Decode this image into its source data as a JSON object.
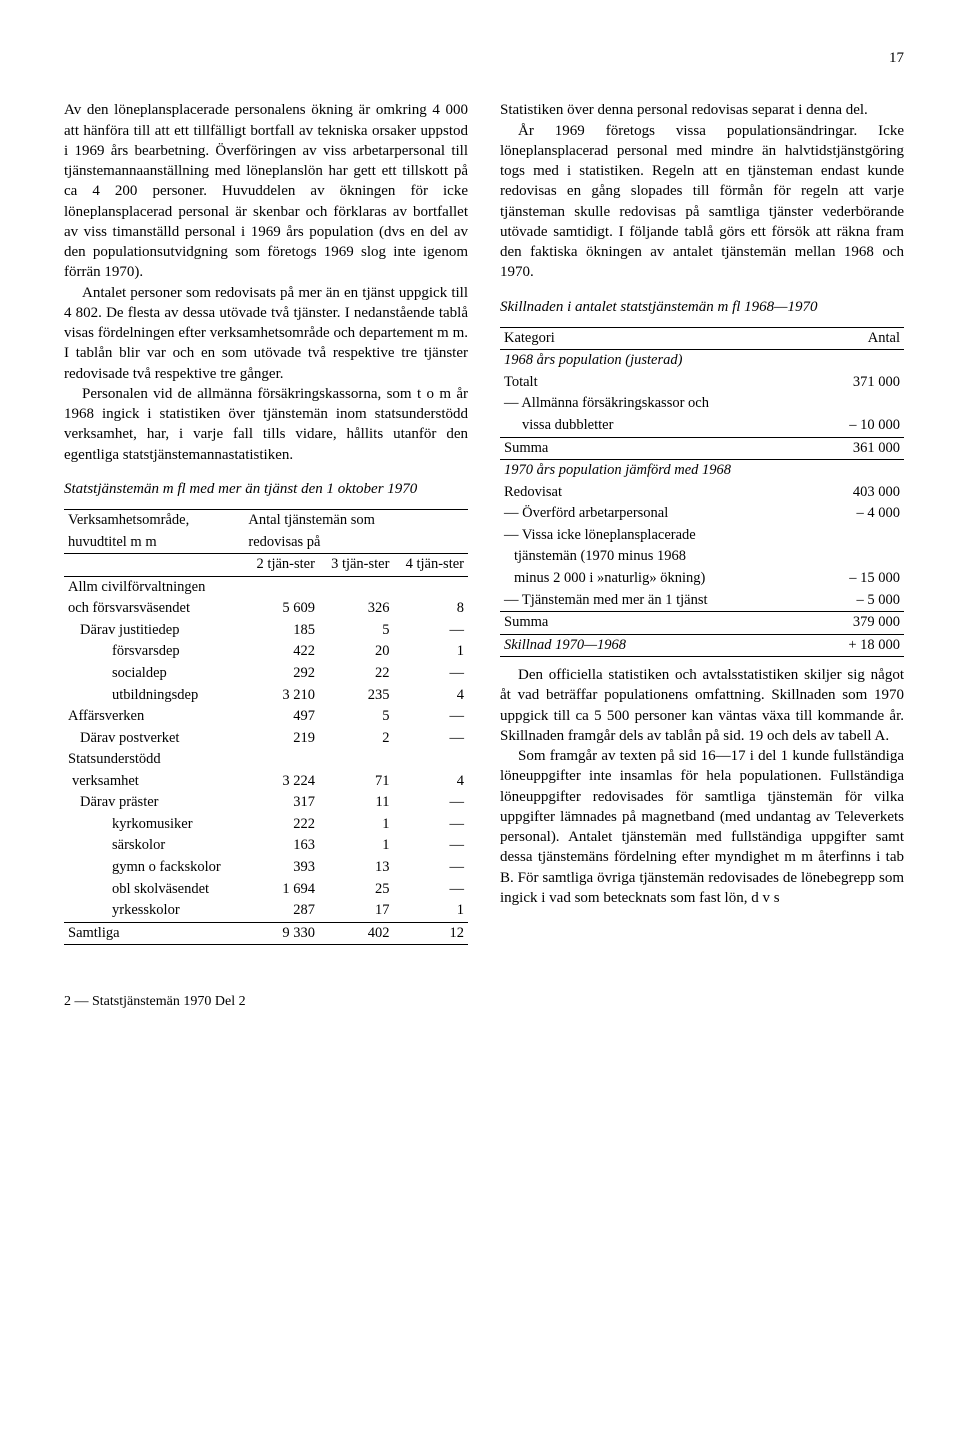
{
  "page_number": "17",
  "left": {
    "paragraphs": [
      "Av den löneplansplacerade personalens ökning är omkring 4 000 att hänföra till att ett tillfälligt bortfall av tekniska orsaker uppstod i 1969 års bearbetning. Överföringen av viss arbetarpersonal till tjänstemannaanställning med löneplanslön har gett ett tillskott på ca 4 200 personer. Huvuddelen av ökningen för icke löneplansplacerad personal är skenbar och förklaras av bortfallet av viss timanställd personal i 1969 års population (dvs en del av den populationsutvidgning som företogs 1969 slog inte igenom förrän 1970).",
      "Antalet personer som redovisats på mer än en tjänst uppgick till 4 802. De flesta av dessa utövade två tjänster. I nedanstående tablå visas fördelningen efter verksamhetsområde och departement m m. I tablån blir var och en som utövade två respektive tre tjänster redovisade två respektive tre gånger.",
      "Personalen vid de allmänna försäkringskassorna, som t o m år 1968 ingick i statistiken över tjänstemän inom statsunderstödd verksamhet, har, i varje fall tills vidare, hållits utanför den egentliga statstjänstemannastatistiken."
    ],
    "table1": {
      "title": "Statstjänstemän m fl med mer än tjänst den 1 oktober 1970",
      "header_left1": "Verksamhetsområde,",
      "header_left2": "huvudtitel m m",
      "header_right1": "Antal tjänstemän som",
      "header_right2": "redovisas på",
      "col_labels": [
        "2 tjän-ster",
        "3 tjän-ster",
        "4 tjän-ster"
      ],
      "rows": [
        {
          "label": "Allm civilförvaltningen",
          "indent": 0,
          "vals": [
            "",
            "",
            ""
          ]
        },
        {
          "label": "och försvarsväsendet",
          "indent": 0,
          "vals": [
            "5 609",
            "326",
            "8"
          ]
        },
        {
          "label": "Därav justitiedep",
          "indent": 1,
          "vals": [
            "185",
            "5",
            "—"
          ]
        },
        {
          "label": "försvarsdep",
          "indent": 2,
          "vals": [
            "422",
            "20",
            "1"
          ]
        },
        {
          "label": "socialdep",
          "indent": 2,
          "vals": [
            "292",
            "22",
            "—"
          ]
        },
        {
          "label": "utbildningsdep",
          "indent": 2,
          "vals": [
            "3 210",
            "235",
            "4"
          ]
        },
        {
          "label": "Affärsverken",
          "indent": 0,
          "vals": [
            "497",
            "5",
            "—"
          ]
        },
        {
          "label": "Därav postverket",
          "indent": 1,
          "vals": [
            "219",
            "2",
            "—"
          ]
        },
        {
          "label": "Statsunderstödd",
          "indent": 0,
          "vals": [
            "",
            "",
            ""
          ]
        },
        {
          "label": "verksamhet",
          "indent": 0,
          "vals": [
            "3 224",
            "71",
            "4"
          ],
          "continuation": true
        },
        {
          "label": "Därav präster",
          "indent": 1,
          "vals": [
            "317",
            "11",
            "—"
          ]
        },
        {
          "label": "kyrkomusiker",
          "indent": 2,
          "vals": [
            "222",
            "1",
            "—"
          ]
        },
        {
          "label": "särskolor",
          "indent": 2,
          "vals": [
            "163",
            "1",
            "—"
          ]
        },
        {
          "label": "gymn o fackskolor",
          "indent": 2,
          "vals": [
            "393",
            "13",
            "—"
          ]
        },
        {
          "label": "obl skolväsendet",
          "indent": 2,
          "vals": [
            "1 694",
            "25",
            "—"
          ]
        },
        {
          "label": "yrkesskolor",
          "indent": 2,
          "vals": [
            "287",
            "17",
            "1"
          ]
        }
      ],
      "total": {
        "label": "Samtliga",
        "vals": [
          "9 330",
          "402",
          "12"
        ]
      }
    }
  },
  "right": {
    "paragraphs_top": [
      "Statistiken över denna personal redovisas separat i denna del.",
      "År 1969 företogs vissa populationsändringar. Icke löneplansplacerad personal med mindre än halvtidstjänstgöring togs med i statistiken. Regeln att en tjänsteman endast kunde redovisas en gång slopades till förmån för regeln att varje tjänsteman skulle redovisas på samtliga tjänster vederbörande utövade samtidigt. I följande tablå görs ett försök att räkna fram den faktiska ökningen av antalet tjänstemän mellan 1968 och 1970."
    ],
    "table2": {
      "title": "Skillnaden i antalet statstjänstemän m fl 1968—1970",
      "header": [
        "Kategori",
        "Antal"
      ],
      "section1_title": "1968 års population (justerad)",
      "section1_rows": [
        {
          "label": "Totalt",
          "val": "371 000"
        },
        {
          "label": "— Allmänna försäkringskassor och",
          "val": ""
        },
        {
          "label": "vissa dubbletter",
          "val": "– 10 000",
          "indent": 2
        }
      ],
      "section1_sum": {
        "label": "Summa",
        "val": "361 000"
      },
      "section2_title": "1970 års population jämförd med 1968",
      "section2_rows": [
        {
          "label": "Redovisat",
          "val": "403 000"
        },
        {
          "label": "— Överförd arbetarpersonal",
          "val": "–  4 000"
        },
        {
          "label": "— Vissa icke löneplansplacerade",
          "val": ""
        },
        {
          "label": "tjänstemän (1970 minus 1968",
          "val": "",
          "indent": 1
        },
        {
          "label": "minus 2 000 i »naturlig» ökning)",
          "val": "– 15 000",
          "indent": 1
        },
        {
          "label": "— Tjänstemän med mer än 1 tjänst",
          "val": "–  5 000"
        }
      ],
      "section2_sum": {
        "label": "Summa",
        "val": "379 000"
      },
      "diff": {
        "label": "Skillnad 1970—1968",
        "val": "+ 18 000"
      }
    },
    "paragraphs_bottom": [
      "Den officiella statistiken och avtalsstatistiken skiljer sig något åt vad beträffar populationens omfattning. Skillnaden som 1970 uppgick till ca 5 500 personer kan väntas växa till kommande år. Skillnaden framgår dels av tablån på sid. 19 och dels av tabell A.",
      "Som framgår av texten på sid 16—17 i del 1 kunde fullständiga löneuppgifter inte insamlas för hela populationen. Fullständiga löneuppgifter redovisades för samtliga tjänstemän för vilka uppgifter lämnades på magnetband (med undantag av Televerkets personal). Antalet tjänstemän med fullständiga uppgifter samt dessa tjänstemäns fördelning efter myndighet m m återfinns i tab B. För samtliga övriga tjänstemän redovisades de lönebegrepp som ingick i vad som betecknats som fast lön, d v s"
    ]
  },
  "footer": "2 — Statstjänstemän 1970 Del 2"
}
